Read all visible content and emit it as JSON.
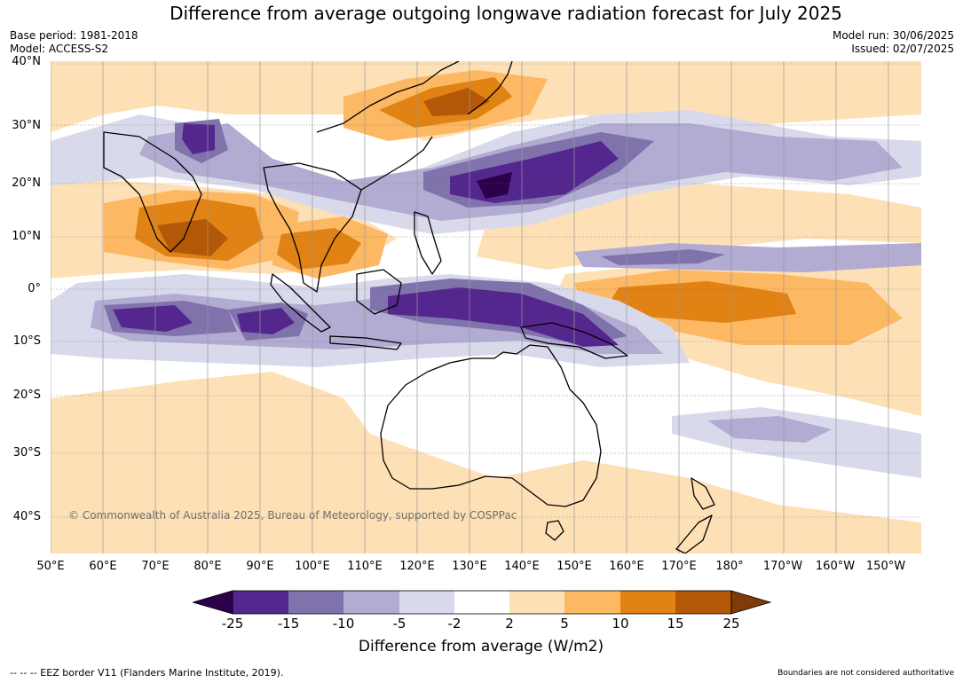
{
  "title": "Difference from average outgoing longwave radiation forecast for July 2025",
  "meta_left": {
    "base_period": "Base period: 1981-2018",
    "model": "Model: ACCESS-S2"
  },
  "meta_right": {
    "model_run": "Model run: 30/06/2025",
    "issued": "Issued: 02/07/2025"
  },
  "latitude_labels": [
    "40°N",
    "30°N",
    "20°N",
    "10°N",
    "0°",
    "10°S",
    "20°S",
    "30°S",
    "40°S"
  ],
  "longitude_labels": [
    "50°E",
    "60°E",
    "70°E",
    "80°E",
    "90°E",
    "100°E",
    "110°E",
    "120°E",
    "130°E",
    "140°E",
    "150°E",
    "160°E",
    "170°E",
    "180°",
    "170°W",
    "160°W",
    "150°W"
  ],
  "copyright": "© Commonwealth of Australia 2025, Bureau of Meteorology, supported by COSPPac",
  "legend": {
    "ticks": [
      "-25",
      "-15",
      "-10",
      "-5",
      "-2",
      "2",
      "5",
      "10",
      "15",
      "25"
    ],
    "bins": [
      {
        "range": "-25 to -15",
        "color": "#54278f"
      },
      {
        "range": "-15 to -10",
        "color": "#8073ac"
      },
      {
        "range": "-10 to -5",
        "color": "#b2abd2"
      },
      {
        "range": "-5 to -2",
        "color": "#d8daeb"
      },
      {
        "range": "-2 to 2",
        "color": "#ffffff"
      },
      {
        "range": "2 to 5",
        "color": "#fee0b6"
      },
      {
        "range": "5 to 10",
        "color": "#fdb863"
      },
      {
        "range": "10 to 15",
        "color": "#e08214"
      },
      {
        "range": "15 to 25",
        "color": "#b35806"
      }
    ],
    "under_color": "#2d004b",
    "over_color": "#7f3b08",
    "label": "Difference from average (W/m2)"
  },
  "footnote_left": "--  --  -- EEZ border V11 (Flanders Marine Institute, 2019).",
  "footnote_right": "Boundaries are not considered authoritative"
}
